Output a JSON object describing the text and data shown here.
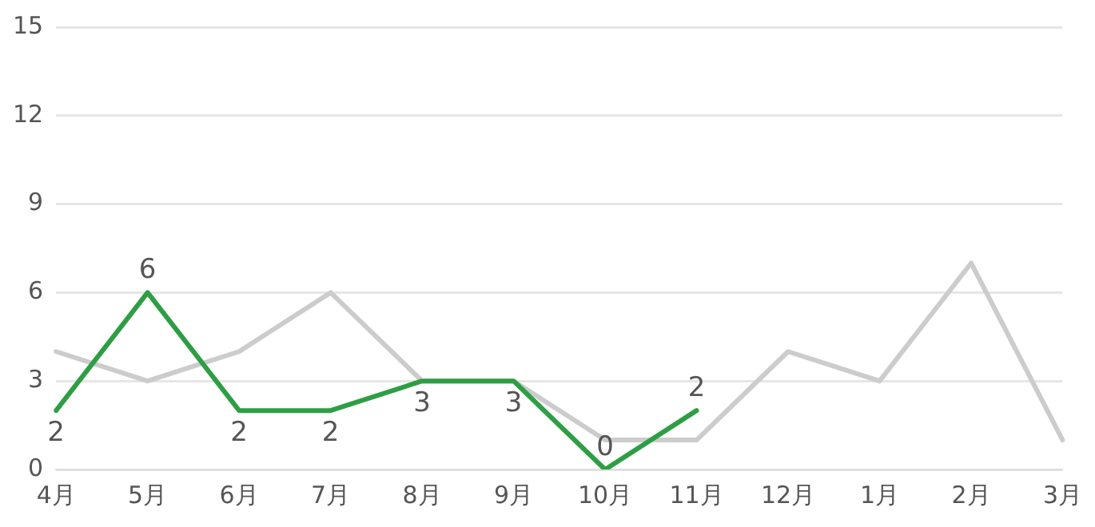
{
  "chart_data": {
    "type": "line",
    "categories": [
      "4月",
      "5月",
      "6月",
      "7月",
      "8月",
      "9月",
      "10月",
      "11月",
      "12月",
      "1月",
      "2月",
      "3月"
    ],
    "series": [
      {
        "color": "#cccccc",
        "values": [
          4,
          3,
          4,
          6,
          3,
          3,
          1,
          1,
          4,
          3,
          7,
          1
        ]
      },
      {
        "color": "#2e9e44",
        "values": [
          2,
          6,
          2,
          2,
          3,
          3,
          0,
          2,
          null,
          null,
          null,
          null
        ],
        "value_labels": [
          "2",
          "6",
          "2",
          "2",
          "3",
          "3",
          "0",
          "2",
          null,
          null,
          null,
          null
        ]
      }
    ],
    "ylim": [
      0,
      15
    ],
    "yticks": [
      0,
      3,
      6,
      9,
      12,
      15
    ],
    "grid": "y",
    "legend": false,
    "marker": "none",
    "line_style": "solid"
  }
}
